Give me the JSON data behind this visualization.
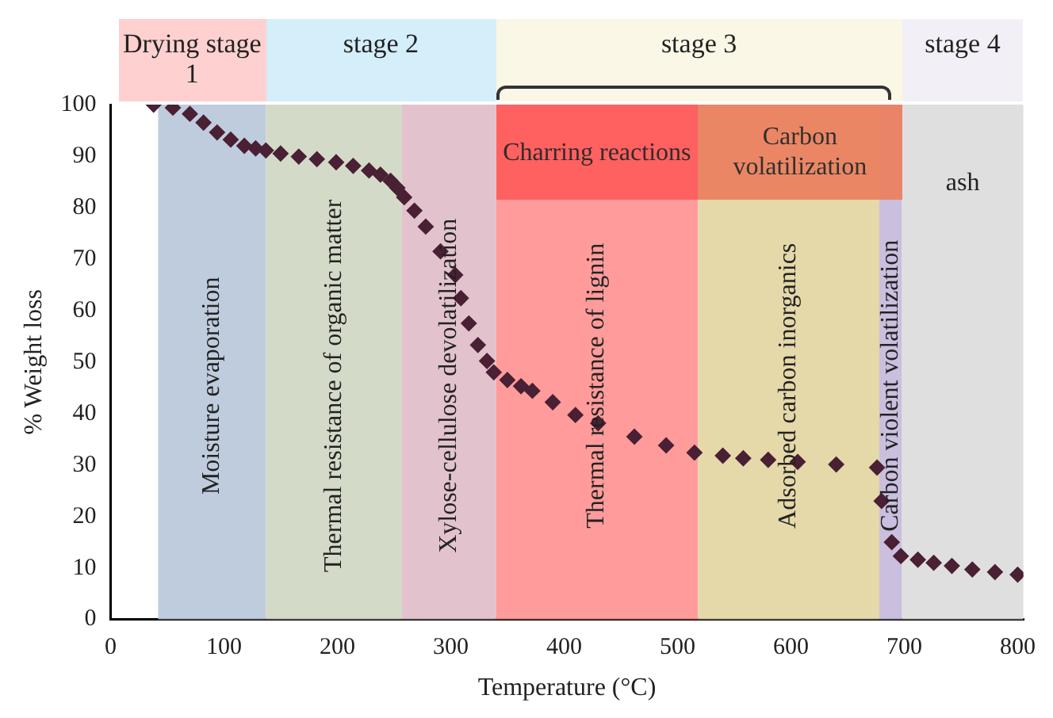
{
  "chart_data": {
    "type": "scatter",
    "xlabel": "Temperature (°C)",
    "ylabel": "% Weight loss",
    "xlim": [
      0,
      805
    ],
    "xticks": [
      0,
      100,
      200,
      300,
      400,
      500,
      600,
      700,
      800
    ],
    "ylim": [
      0,
      100
    ],
    "yticks": [
      0,
      10,
      20,
      30,
      40,
      50,
      60,
      70,
      80,
      90,
      100
    ],
    "grid": false,
    "legend": false,
    "marker": "diamond",
    "series": [
      {
        "color": "#4a2034",
        "x": [
          38,
          55,
          70,
          82,
          94,
          106,
          118,
          128,
          137,
          150,
          166,
          182,
          199,
          214,
          228,
          238,
          247,
          253,
          259,
          268,
          278,
          291,
          304,
          309,
          316,
          324,
          332,
          338,
          350,
          362,
          372,
          390,
          410,
          430,
          462,
          490,
          515,
          540,
          558,
          580,
          606,
          640,
          676,
          680,
          689,
          697,
          712,
          726,
          742,
          760,
          780,
          800
        ],
        "values": [
          100,
          99.4,
          98.2,
          96.5,
          94.6,
          93.2,
          92,
          91.5,
          91.1,
          90.5,
          89.9,
          89.4,
          88.8,
          88.1,
          87.2,
          86.4,
          85.2,
          83.8,
          82,
          79.4,
          76.3,
          71.5,
          66.9,
          62.4,
          57.5,
          53.3,
          50.2,
          48,
          46.5,
          45.3,
          44.4,
          42.2,
          39.7,
          38.1,
          35.5,
          33.8,
          32.4,
          31.8,
          31.3,
          31,
          30.6,
          30.1,
          29.5,
          23,
          15,
          12.3,
          11.6,
          11,
          10.4,
          9.7,
          9.2,
          8.7
        ]
      }
    ],
    "bands": [
      {
        "axis": "x",
        "from": 42,
        "to": 137,
        "label": "Moisture evaporation",
        "color": "#b8c6da"
      },
      {
        "axis": "x",
        "from": 137,
        "to": 257,
        "label": "Thermal resistance of organic matter",
        "color": "#cfd6c2"
      },
      {
        "axis": "x",
        "from": 257,
        "to": 340,
        "label": "Xylose-cellulose devolatilization",
        "color": "#dfbcc8"
      },
      {
        "axis": "x",
        "from": 340,
        "to": 518,
        "label": "Thermal resistance of lignin",
        "color": "#ff9090"
      },
      {
        "axis": "x",
        "from": 518,
        "to": 678,
        "label": "Adsorbed carbon inorganics",
        "color": "#e2d4a0"
      },
      {
        "axis": "x",
        "from": 678,
        "to": 698,
        "label": "Carbon violent volatilization",
        "color": "#c4b8da"
      },
      {
        "axis": "x",
        "from": 698,
        "to": 805,
        "label": "ash",
        "color": "#dcdcdc"
      }
    ],
    "annotations": [
      "Drying stage 1",
      "stage 2",
      "stage 3",
      "stage 4",
      "Charring reactions",
      "Carbon volatilization"
    ]
  }
}
